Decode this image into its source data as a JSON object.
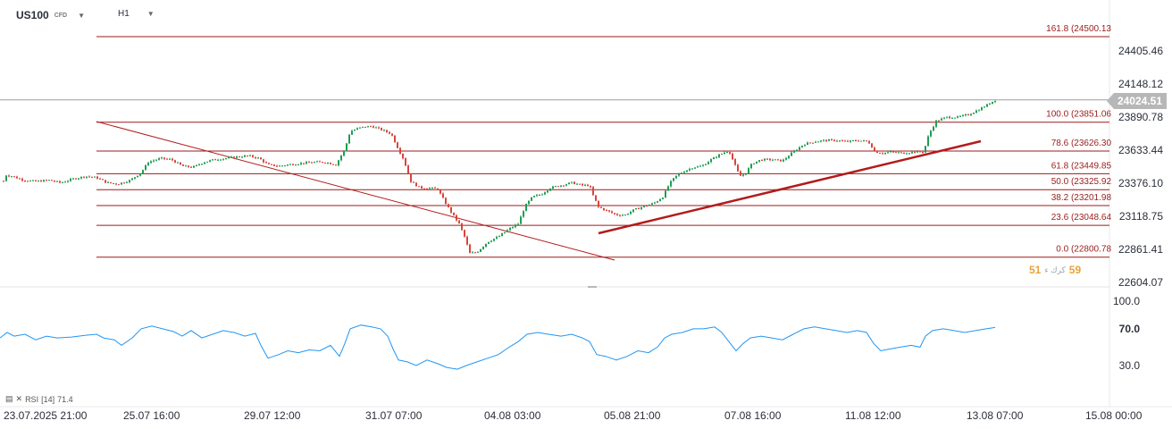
{
  "header": {
    "symbol": "US100",
    "instrument_type": "CFD",
    "timeframe": "H1"
  },
  "current_price": "24024.51",
  "rsi": {
    "label": "RSI",
    "period": "[14]",
    "value": "71.4"
  },
  "sentiment": {
    "left": "51",
    "right": "59",
    "separator": "كرك ء"
  },
  "colors": {
    "up": "#1f9d55",
    "down": "#d8453d",
    "fib": "#9b1b1b",
    "trend": "#b21b1b",
    "rsi": "#2196f3",
    "axis_text": "#2a2e39"
  },
  "chart_data": [
    {
      "type": "candlestick",
      "title": "US100 CFD H1",
      "y_axis_ticks": [
        "24405.46",
        "24148.12",
        "23890.78",
        "23633.44",
        "23376.10",
        "23118.75",
        "22861.41",
        "22604.07"
      ],
      "ylim": [
        22604.07,
        24405.46
      ],
      "x_axis_ticks": [
        "23.07.2025  21:00",
        "25.07  16:00",
        "29.07  12:00",
        "31.07  07:00",
        "04.08  03:00",
        "05.08  21:00",
        "07.08  16:00",
        "11.08  12:00",
        "13.08  07:00",
        "15.08  00:00"
      ],
      "last_price": 24024.51,
      "fibonacci_levels": [
        {
          "label": "161.8 (24500.13",
          "level": 161.8,
          "price": 24500.13
        },
        {
          "label": "100.0 (23851.06",
          "level": 100.0,
          "price": 23851.06
        },
        {
          "label": "78.6 (23626.30",
          "level": 78.6,
          "price": 23626.3
        },
        {
          "label": "61.8 (23449.85",
          "level": 61.8,
          "price": 23449.85
        },
        {
          "label": "50.0 (23325.92",
          "level": 50.0,
          "price": 23325.92
        },
        {
          "label": "38.2 (23201.98",
          "level": 38.2,
          "price": 23201.98
        },
        {
          "label": "23.6 (23048.64",
          "level": 23.6,
          "price": 23048.64
        },
        {
          "label": "0.0 (22800.78",
          "level": 0.0,
          "price": 22800.78
        }
      ],
      "close_path": [
        [
          0,
          23300
        ],
        [
          6,
          23440
        ],
        [
          14,
          23430
        ],
        [
          26,
          23400
        ],
        [
          40,
          23390
        ],
        [
          55,
          23400
        ],
        [
          68,
          23380
        ],
        [
          82,
          23410
        ],
        [
          96,
          23430
        ],
        [
          108,
          23420
        ],
        [
          120,
          23380
        ],
        [
          132,
          23370
        ],
        [
          146,
          23400
        ],
        [
          158,
          23460
        ],
        [
          166,
          23540
        ],
        [
          180,
          23570
        ],
        [
          192,
          23560
        ],
        [
          204,
          23510
        ],
        [
          216,
          23500
        ],
        [
          228,
          23540
        ],
        [
          240,
          23560
        ],
        [
          252,
          23570
        ],
        [
          264,
          23580
        ],
        [
          278,
          23590
        ],
        [
          290,
          23570
        ],
        [
          300,
          23520
        ],
        [
          312,
          23510
        ],
        [
          322,
          23520
        ],
        [
          336,
          23530
        ],
        [
          350,
          23540
        ],
        [
          364,
          23540
        ],
        [
          376,
          23520
        ],
        [
          386,
          23640
        ],
        [
          392,
          23780
        ],
        [
          404,
          23810
        ],
        [
          416,
          23820
        ],
        [
          428,
          23790
        ],
        [
          438,
          23760
        ],
        [
          446,
          23640
        ],
        [
          452,
          23560
        ],
        [
          460,
          23390
        ],
        [
          470,
          23340
        ],
        [
          480,
          23340
        ],
        [
          490,
          23330
        ],
        [
          498,
          23230
        ],
        [
          506,
          23140
        ],
        [
          514,
          23060
        ],
        [
          520,
          22960
        ],
        [
          526,
          22830
        ],
        [
          534,
          22840
        ],
        [
          546,
          22920
        ],
        [
          558,
          22960
        ],
        [
          570,
          23020
        ],
        [
          580,
          23060
        ],
        [
          588,
          23200
        ],
        [
          596,
          23270
        ],
        [
          606,
          23290
        ],
        [
          616,
          23340
        ],
        [
          628,
          23360
        ],
        [
          640,
          23380
        ],
        [
          652,
          23360
        ],
        [
          660,
          23360
        ],
        [
          664,
          23280
        ],
        [
          670,
          23190
        ],
        [
          680,
          23160
        ],
        [
          690,
          23130
        ],
        [
          700,
          23130
        ],
        [
          710,
          23170
        ],
        [
          722,
          23200
        ],
        [
          732,
          23220
        ],
        [
          742,
          23270
        ],
        [
          750,
          23380
        ],
        [
          758,
          23440
        ],
        [
          766,
          23470
        ],
        [
          776,
          23500
        ],
        [
          786,
          23510
        ],
        [
          796,
          23560
        ],
        [
          806,
          23600
        ],
        [
          816,
          23630
        ],
        [
          822,
          23530
        ],
        [
          828,
          23430
        ],
        [
          834,
          23450
        ],
        [
          842,
          23530
        ],
        [
          852,
          23560
        ],
        [
          864,
          23560
        ],
        [
          876,
          23550
        ],
        [
          888,
          23620
        ],
        [
          900,
          23680
        ],
        [
          912,
          23700
        ],
        [
          924,
          23710
        ],
        [
          936,
          23710
        ],
        [
          948,
          23700
        ],
        [
          960,
          23710
        ],
        [
          972,
          23700
        ],
        [
          980,
          23620
        ],
        [
          988,
          23610
        ],
        [
          998,
          23620
        ],
        [
          1010,
          23610
        ],
        [
          1024,
          23620
        ],
        [
          1034,
          23620
        ],
        [
          1040,
          23760
        ],
        [
          1048,
          23860
        ],
        [
          1060,
          23890
        ],
        [
          1072,
          23890
        ],
        [
          1084,
          23910
        ],
        [
          1096,
          23950
        ],
        [
          1106,
          23990
        ],
        [
          1114,
          24024
        ]
      ],
      "trendlines": [
        {
          "from": [
            "23.07",
            23870
          ],
          "to": [
            "05.08",
            22800
          ]
        },
        {
          "from": [
            "05.08",
            23060
          ],
          "to": [
            "12.08",
            23660
          ]
        }
      ],
      "rsi_series": {
        "name": "RSI [14] 71.4",
        "ylim": [
          10,
          100
        ],
        "levels": [
          30,
          70
        ],
        "axis_ticks": [
          "100.0",
          "70.0",
          "30.0"
        ],
        "path": [
          [
            0,
            60
          ],
          [
            8,
            66
          ],
          [
            16,
            62
          ],
          [
            28,
            64
          ],
          [
            40,
            58
          ],
          [
            52,
            62
          ],
          [
            64,
            60
          ],
          [
            80,
            61
          ],
          [
            96,
            63
          ],
          [
            108,
            64
          ],
          [
            116,
            60
          ],
          [
            128,
            58
          ],
          [
            136,
            52
          ],
          [
            148,
            60
          ],
          [
            158,
            70
          ],
          [
            170,
            73
          ],
          [
            182,
            70
          ],
          [
            194,
            67
          ],
          [
            204,
            62
          ],
          [
            214,
            68
          ],
          [
            226,
            60
          ],
          [
            238,
            64
          ],
          [
            250,
            68
          ],
          [
            262,
            66
          ],
          [
            274,
            62
          ],
          [
            286,
            65
          ],
          [
            292,
            52
          ],
          [
            300,
            38
          ],
          [
            312,
            42
          ],
          [
            322,
            46
          ],
          [
            334,
            44
          ],
          [
            346,
            47
          ],
          [
            358,
            46
          ],
          [
            370,
            52
          ],
          [
            380,
            40
          ],
          [
            386,
            54
          ],
          [
            392,
            70
          ],
          [
            404,
            74
          ],
          [
            416,
            72
          ],
          [
            426,
            70
          ],
          [
            434,
            62
          ],
          [
            440,
            48
          ],
          [
            446,
            36
          ],
          [
            456,
            34
          ],
          [
            466,
            30
          ],
          [
            478,
            36
          ],
          [
            490,
            32
          ],
          [
            500,
            28
          ],
          [
            512,
            26
          ],
          [
            522,
            30
          ],
          [
            534,
            34
          ],
          [
            546,
            38
          ],
          [
            558,
            42
          ],
          [
            570,
            50
          ],
          [
            580,
            56
          ],
          [
            590,
            64
          ],
          [
            602,
            66
          ],
          [
            614,
            64
          ],
          [
            628,
            62
          ],
          [
            640,
            64
          ],
          [
            652,
            60
          ],
          [
            660,
            56
          ],
          [
            668,
            42
          ],
          [
            678,
            40
          ],
          [
            690,
            36
          ],
          [
            702,
            40
          ],
          [
            714,
            46
          ],
          [
            726,
            44
          ],
          [
            736,
            50
          ],
          [
            744,
            60
          ],
          [
            752,
            64
          ],
          [
            764,
            66
          ],
          [
            776,
            70
          ],
          [
            788,
            70
          ],
          [
            800,
            72
          ],
          [
            808,
            66
          ],
          [
            816,
            56
          ],
          [
            824,
            46
          ],
          [
            832,
            54
          ],
          [
            840,
            60
          ],
          [
            852,
            62
          ],
          [
            864,
            60
          ],
          [
            876,
            58
          ],
          [
            888,
            64
          ],
          [
            900,
            70
          ],
          [
            912,
            72
          ],
          [
            924,
            70
          ],
          [
            936,
            68
          ],
          [
            948,
            66
          ],
          [
            960,
            68
          ],
          [
            970,
            66
          ],
          [
            978,
            54
          ],
          [
            986,
            46
          ],
          [
            996,
            48
          ],
          [
            1008,
            50
          ],
          [
            1020,
            52
          ],
          [
            1030,
            50
          ],
          [
            1036,
            62
          ],
          [
            1044,
            68
          ],
          [
            1056,
            70
          ],
          [
            1068,
            68
          ],
          [
            1080,
            66
          ],
          [
            1092,
            68
          ],
          [
            1104,
            70
          ],
          [
            1114,
            71.4
          ]
        ]
      }
    }
  ]
}
